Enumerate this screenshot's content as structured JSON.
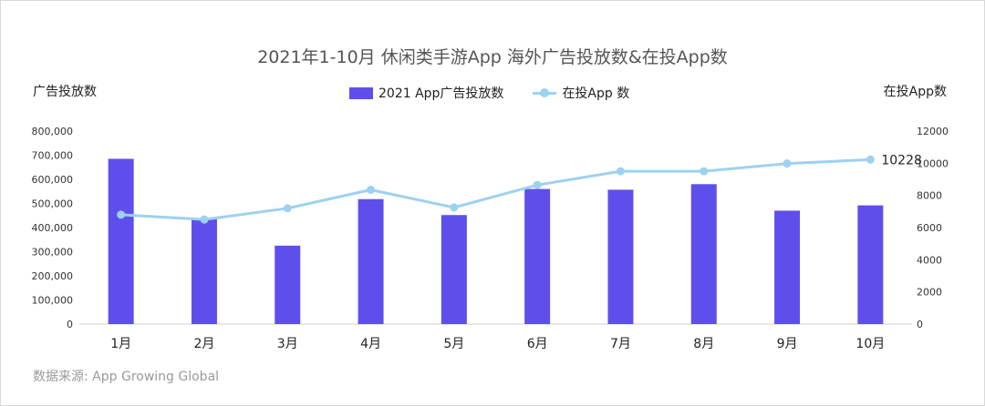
{
  "chart_data": {
    "type": "bar+line",
    "title": "2021年1-10月 休闲类手游App 海外广告投放数&在投App数",
    "categories": [
      "1月",
      "2月",
      "3月",
      "4月",
      "5月",
      "6月",
      "7月",
      "8月",
      "9月",
      "10月"
    ],
    "series": [
      {
        "name": "2021 App广告投放数",
        "type": "bar",
        "axis": "left",
        "color": "#5e4fec",
        "values": [
          685000,
          435000,
          325000,
          518000,
          452000,
          560000,
          557000,
          580000,
          470000,
          492000
        ]
      },
      {
        "name": "在投App 数",
        "type": "line",
        "axis": "right",
        "color": "#9dd1f1",
        "values": [
          6800,
          6500,
          7200,
          8350,
          7250,
          8650,
          9500,
          9500,
          9980,
          10228
        ]
      }
    ],
    "annotation": {
      "text": "10228",
      "category": "10月"
    },
    "y_left": {
      "label": "广告投放数",
      "min": 0,
      "max": 800000,
      "ticks": [
        "0",
        "100,000",
        "200,000",
        "300,000",
        "400,000",
        "500,000",
        "600,000",
        "700,000",
        "800,000"
      ]
    },
    "y_right": {
      "label": "在投App数",
      "min": 0,
      "max": 12000,
      "ticks": [
        "0",
        "2000",
        "4000",
        "6000",
        "8000",
        "10000",
        "12000"
      ]
    },
    "legend_position": "top-center",
    "grid": false
  },
  "source": "数据来源: App Growing Global"
}
